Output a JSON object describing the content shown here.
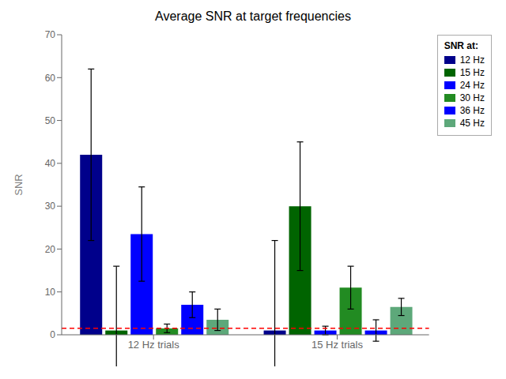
{
  "chart_data": {
    "type": "bar",
    "title": "Average SNR at target frequencies",
    "ylabel": "SNR",
    "categories": [
      "12 Hz trials",
      "15 Hz trials"
    ],
    "series": [
      {
        "name": "12 Hz",
        "color": "#00008B",
        "values": [
          42.0,
          1.0
        ],
        "errors": [
          20.0,
          21.0
        ]
      },
      {
        "name": "15 Hz",
        "color": "#006400",
        "values": [
          1.0,
          30.0
        ],
        "errors": [
          15.0,
          15.0
        ]
      },
      {
        "name": "24 Hz",
        "color": "#0000FF",
        "values": [
          23.5,
          1.0
        ],
        "errors": [
          11.0,
          1.0
        ]
      },
      {
        "name": "30 Hz",
        "color": "#228B22",
        "values": [
          1.5,
          11.0
        ],
        "errors": [
          1.0,
          5.0
        ]
      },
      {
        "name": "36 Hz",
        "color": "#0000FF",
        "values": [
          7.0,
          1.0
        ],
        "errors": [
          3.0,
          2.5
        ]
      },
      {
        "name": "45 Hz",
        "color": "#5DA87A",
        "values": [
          3.5,
          6.5
        ],
        "errors": [
          2.5,
          2.0
        ]
      }
    ],
    "ylim": [
      0,
      70
    ],
    "yticks": [
      0,
      10,
      20,
      30,
      40,
      50,
      60,
      70
    ],
    "reference_line": {
      "y": 1.5,
      "color": "red",
      "line_style": "dashed"
    },
    "legend": "upper right",
    "legend_title": "SNR at:",
    "grid": false
  }
}
